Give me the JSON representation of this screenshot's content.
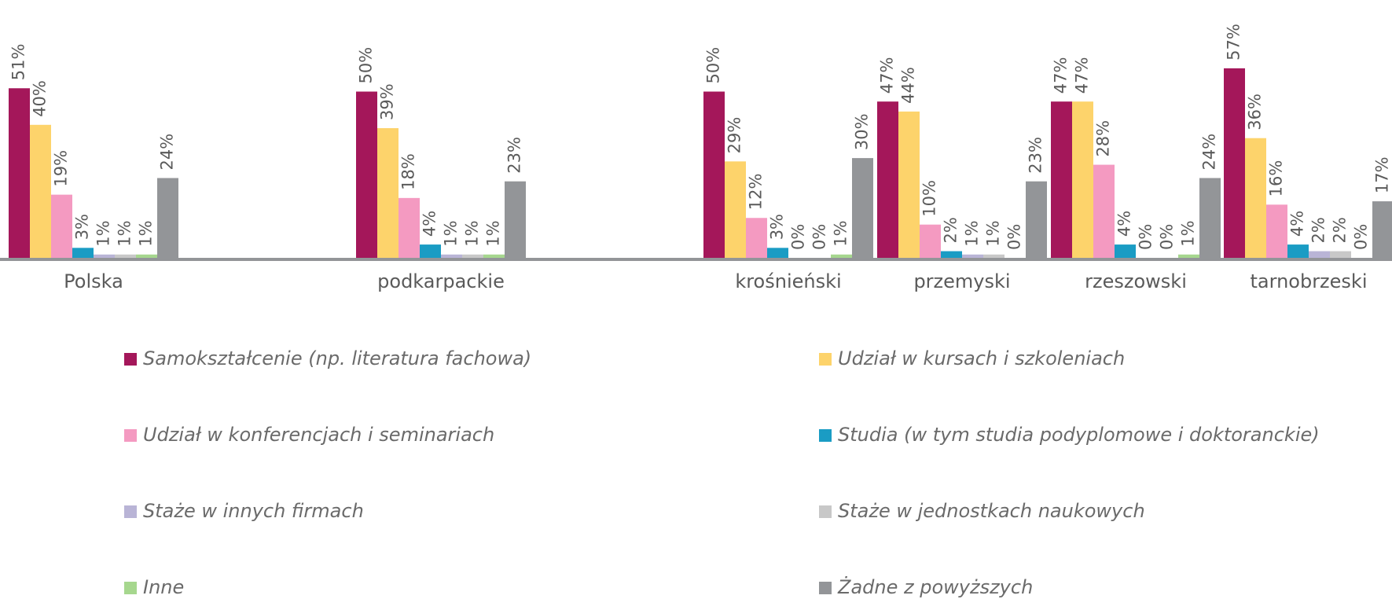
{
  "chart_data": {
    "type": "bar",
    "categories": [
      "Polska",
      "podkarpackie",
      "krośnieński",
      "przemyski",
      "rzeszowski",
      "tarnobrzeski"
    ],
    "series": [
      {
        "name": "Samokształcenie (np. literatura fachowa)",
        "color": "#a4175a",
        "values": [
          51,
          50,
          50,
          47,
          47,
          57
        ],
        "value_labels": [
          "51%",
          "50%",
          "50%",
          "47%",
          "47%",
          "57%"
        ]
      },
      {
        "name": "Udział w kursach i szkoleniach",
        "color": "#fdd36b",
        "values": [
          40,
          39,
          29,
          44,
          47,
          36
        ],
        "value_labels": [
          "40%",
          "39%",
          "29%",
          "44%",
          "47%",
          "36%"
        ]
      },
      {
        "name": "Udział w konferencjach i seminariach",
        "color": "#f49ac1",
        "values": [
          19,
          18,
          12,
          10,
          28,
          16
        ],
        "value_labels": [
          "19%",
          "18%",
          "12%",
          "10%",
          "28%",
          "16%"
        ]
      },
      {
        "name": "Studia (w tym studia podyplomowe i doktoranckie)",
        "color": "#1a9cc4",
        "values": [
          3,
          4,
          3,
          2,
          4,
          4
        ],
        "value_labels": [
          "3%",
          "4%",
          "3%",
          "2%",
          "4%",
          "4%"
        ]
      },
      {
        "name": "Staże w innych firmach",
        "color": "#b9b4d6",
        "values": [
          1,
          1,
          0,
          1,
          0,
          2
        ],
        "value_labels": [
          "1%",
          "1%",
          "0%",
          "1%",
          "0%",
          "2%"
        ]
      },
      {
        "name": "Staże w jednostkach naukowych",
        "color": "#c8c8c8",
        "values": [
          1,
          1,
          0,
          1,
          0,
          2
        ],
        "value_labels": [
          "1%",
          "1%",
          "0%",
          "1%",
          "0%",
          "2%"
        ]
      },
      {
        "name": "Inne",
        "color": "#a6d78e",
        "values": [
          1,
          1,
          1,
          0,
          1,
          0
        ],
        "value_labels": [
          "1%",
          "1%",
          "1%",
          "0%",
          "1%",
          "0%"
        ]
      },
      {
        "name": "Żadne z powyższych",
        "color": "#939598",
        "values": [
          24,
          23,
          30,
          23,
          24,
          17
        ],
        "value_labels": [
          "24%",
          "23%",
          "30%",
          "23%",
          "24%",
          "17%"
        ]
      }
    ]
  }
}
